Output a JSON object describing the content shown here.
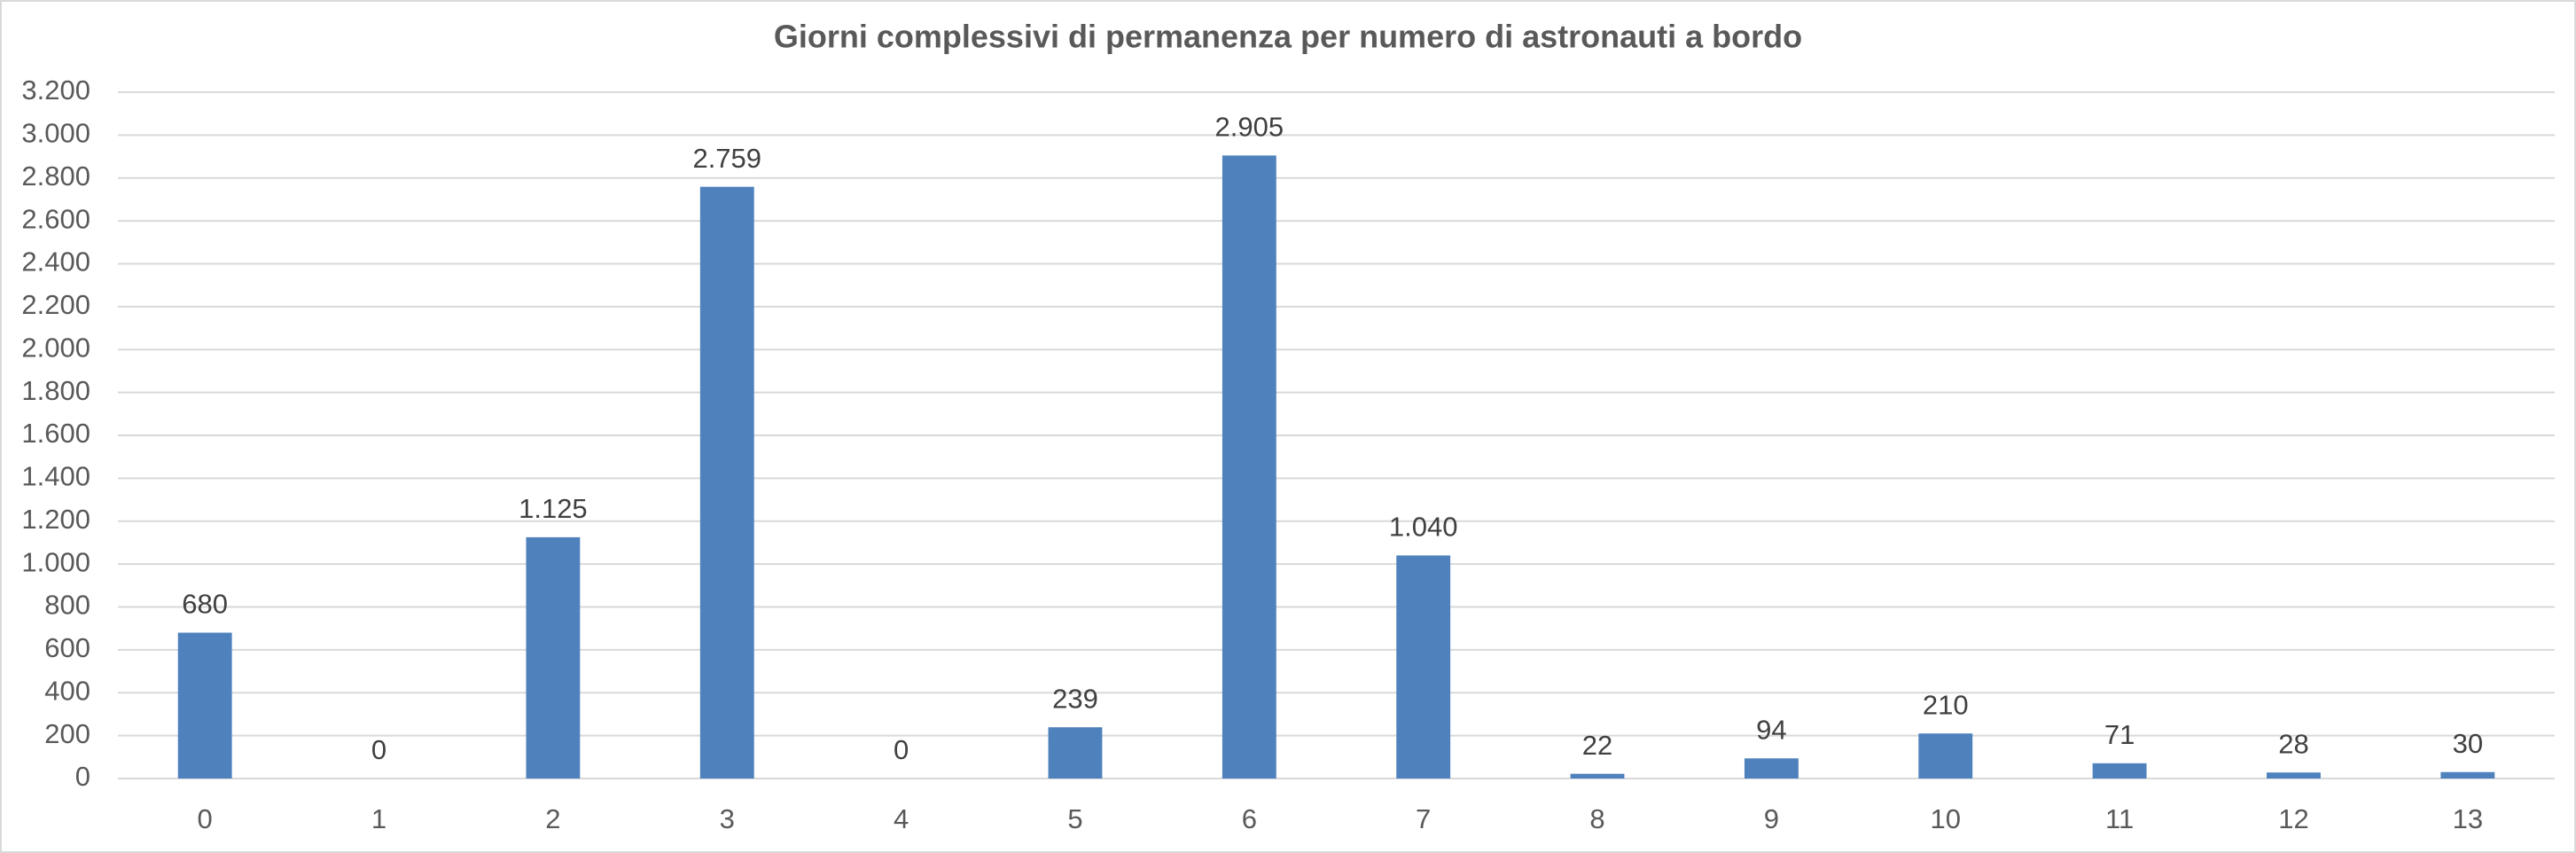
{
  "chart_data": {
    "type": "bar",
    "title": "Giorni complessivi di permanenza per numero di astronauti a bordo",
    "categories": [
      "0",
      "1",
      "2",
      "3",
      "4",
      "5",
      "6",
      "7",
      "8",
      "9",
      "10",
      "11",
      "12",
      "13"
    ],
    "values": [
      680,
      0,
      1125,
      2759,
      0,
      239,
      2905,
      1040,
      22,
      94,
      210,
      71,
      28,
      30
    ],
    "value_labels": [
      "680",
      "0",
      "1.125",
      "2.759",
      "0",
      "239",
      "2.905",
      "1.040",
      "22",
      "94",
      "210",
      "71",
      "28",
      "30"
    ],
    "color": "#4f81bd",
    "ylim": [
      0,
      3200
    ],
    "yticks": [
      0,
      200,
      400,
      600,
      800,
      {
        "value": 1000,
        "label": "1.000"
      },
      {
        "value": 1200,
        "label": "1.200"
      },
      {
        "value": 1400,
        "label": "1.400"
      },
      {
        "value": 1600,
        "label": "1.600"
      },
      {
        "value": 1800,
        "label": "1.800"
      },
      {
        "value": 2000,
        "label": "2.000"
      },
      {
        "value": 2200,
        "label": "2.200"
      },
      {
        "value": 2400,
        "label": "2.400"
      },
      {
        "value": 2600,
        "label": "2.600"
      },
      {
        "value": 2800,
        "label": "2.800"
      },
      {
        "value": 3000,
        "label": "3.000"
      },
      {
        "value": 3200,
        "label": "3.200"
      }
    ],
    "grid": true
  }
}
